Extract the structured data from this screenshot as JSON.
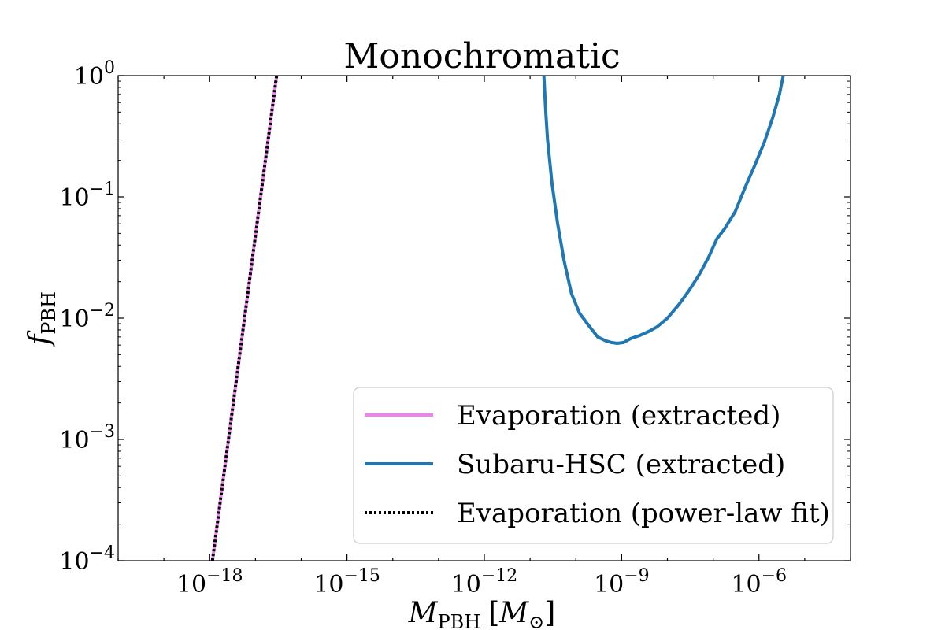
{
  "chart_data": {
    "type": "line",
    "title": "Monochromatic",
    "xlabel": {
      "main": "M",
      "sub": "PBH",
      "unit_open": "[",
      "unit_main": "M",
      "unit_sub": "⊙",
      "unit_close": "]"
    },
    "ylabel": {
      "main": "f",
      "sub": "PBH"
    },
    "x_scale": "log",
    "y_scale": "log",
    "xlim": [
      1e-20,
      0.0001
    ],
    "ylim": [
      0.0001,
      1
    ],
    "x_ticks": [
      {
        "value": 1e-18,
        "base": "10",
        "exp": "−18"
      },
      {
        "value": 1e-15,
        "base": "10",
        "exp": "−15"
      },
      {
        "value": 1e-12,
        "base": "10",
        "exp": "−12"
      },
      {
        "value": 1e-09,
        "base": "10",
        "exp": "−9"
      },
      {
        "value": 1e-06,
        "base": "10",
        "exp": "−6"
      }
    ],
    "y_ticks": [
      {
        "value": 1,
        "base": "10",
        "exp": "0"
      },
      {
        "value": 0.1,
        "base": "10",
        "exp": "−1"
      },
      {
        "value": 0.01,
        "base": "10",
        "exp": "−2"
      },
      {
        "value": 0.001,
        "base": "10",
        "exp": "−3"
      },
      {
        "value": 0.0001,
        "base": "10",
        "exp": "−4"
      }
    ],
    "grid": false,
    "legend_position": "lower-right",
    "series": [
      {
        "name": "Evaporation (extracted)",
        "color": "#ee82ee",
        "style": "solid",
        "x": [
          1.15e-18,
          2.9e-17
        ],
        "y": [
          0.0001,
          1
        ]
      },
      {
        "name": "Subaru-HSC (extracted)",
        "color": "#1f77b4",
        "style": "solid",
        "x": [
          2e-11,
          2.2e-11,
          2.4e-11,
          3e-11,
          4e-11,
          5.5e-11,
          8e-11,
          1.2e-10,
          2e-10,
          3e-10,
          4.5e-10,
          6e-10,
          8e-10,
          1.1e-09,
          1.6e-09,
          2.5e-09,
          4e-09,
          6e-09,
          1e-08,
          1.8e-08,
          3e-08,
          5e-08,
          8e-08,
          1.2e-07,
          1.8e-07,
          3e-07,
          5e-07,
          8e-07,
          1.3e-06,
          2e-06,
          2.8e-06,
          3.4e-06
        ],
        "y": [
          1.0,
          0.5,
          0.3,
          0.13,
          0.06,
          0.03,
          0.016,
          0.011,
          0.0085,
          0.007,
          0.0065,
          0.0063,
          0.0062,
          0.0063,
          0.0068,
          0.0072,
          0.0078,
          0.0085,
          0.01,
          0.013,
          0.017,
          0.023,
          0.032,
          0.045,
          0.055,
          0.075,
          0.12,
          0.18,
          0.28,
          0.45,
          0.7,
          1.0
        ]
      },
      {
        "name": "Evaporation (power-law fit)",
        "color": "#000000",
        "style": "dotted",
        "x": [
          1.15e-18,
          2.9e-17
        ],
        "y": [
          0.0001,
          1
        ]
      }
    ]
  }
}
